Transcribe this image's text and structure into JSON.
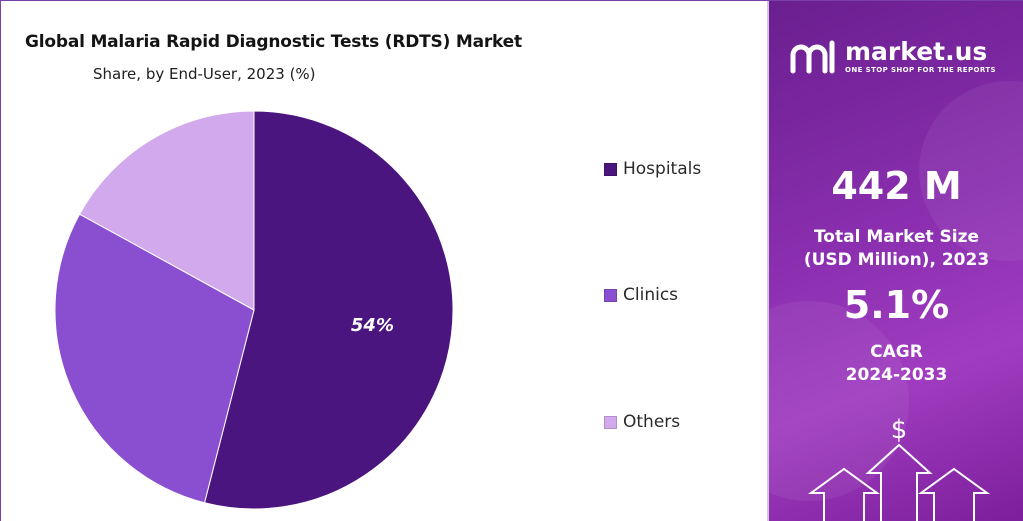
{
  "chart_data": {
    "type": "pie",
    "title": "Global Malaria Rapid Diagnostic Tests (RDTS) Market",
    "subtitle": "Share, by End-User, 2023 (%)",
    "categories": [
      "Hospitals",
      "Clinics",
      "Others"
    ],
    "values": [
      54,
      29,
      17
    ],
    "data_labels": [
      "54%",
      "",
      ""
    ],
    "colors": [
      "#4b1580",
      "#8a4fd1",
      "#d2a9ec"
    ],
    "legend_position": "right"
  },
  "sidebar": {
    "brand_name": "market.us",
    "brand_tagline": "ONE STOP SHOP FOR THE REPORTS",
    "market_size_value": "442 M",
    "market_size_label_line1": "Total Market Size",
    "market_size_label_line2": "(USD Million), 2023",
    "cagr_value": "5.1%",
    "cagr_label_line1": "CAGR",
    "cagr_label_line2": "2024-2033",
    "dollar_symbol": "$",
    "background_color": "#8b2fb0"
  }
}
